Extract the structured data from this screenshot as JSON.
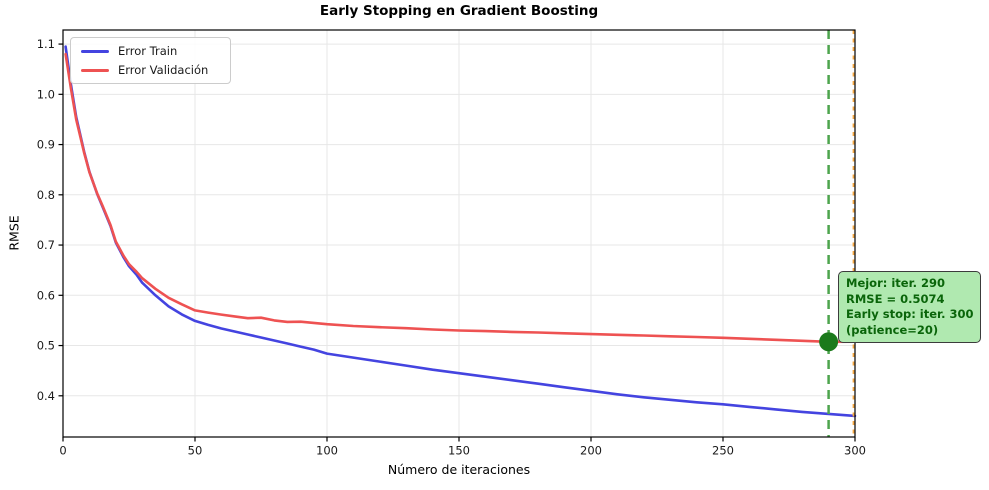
{
  "chart_data": {
    "type": "line",
    "title": "Early Stopping en Gradient Boosting",
    "xlabel": "Número de iteraciones",
    "ylabel": "RMSE",
    "xlim": [
      0,
      300
    ],
    "ylim": [
      0.318,
      1.128
    ],
    "x_ticks": [
      0,
      50,
      100,
      150,
      200,
      250,
      300
    ],
    "x_tick_labels": [
      "0",
      "50",
      "100",
      "150",
      "200",
      "250",
      "300"
    ],
    "y_ticks": [
      0.4,
      0.5,
      0.6,
      0.7,
      0.8,
      0.9,
      1.0,
      1.1
    ],
    "y_tick_labels": [
      "0.4",
      "0.5",
      "0.6",
      "0.7",
      "0.8",
      "0.9",
      "1.0",
      "1.1"
    ],
    "grid": true,
    "grid_color": "#e7e7e7",
    "legend_position": "upper-left",
    "x": [
      1,
      3,
      5,
      8,
      10,
      13,
      15,
      18,
      20,
      23,
      25,
      28,
      30,
      35,
      40,
      45,
      50,
      55,
      60,
      65,
      70,
      75,
      80,
      85,
      90,
      95,
      100,
      110,
      120,
      130,
      140,
      150,
      160,
      170,
      180,
      190,
      200,
      210,
      220,
      230,
      240,
      250,
      260,
      270,
      280,
      290,
      300
    ],
    "series": [
      {
        "name": "Error Train",
        "color": "#4444e0",
        "y": [
          1.095,
          1.02,
          0.955,
          0.886,
          0.846,
          0.801,
          0.776,
          0.738,
          0.705,
          0.675,
          0.658,
          0.64,
          0.625,
          0.6,
          0.578,
          0.562,
          0.549,
          0.541,
          0.534,
          0.528,
          0.522,
          0.516,
          0.51,
          0.504,
          0.498,
          0.492,
          0.484,
          0.476,
          0.468,
          0.46,
          0.452,
          0.445,
          0.438,
          0.431,
          0.424,
          0.417,
          0.41,
          0.403,
          0.397,
          0.392,
          0.387,
          0.383,
          0.378,
          0.373,
          0.368,
          0.364,
          0.36
        ]
      },
      {
        "name": "Error Validación",
        "color": "#ee5252",
        "y": [
          1.08,
          1.012,
          0.95,
          0.884,
          0.845,
          0.802,
          0.778,
          0.74,
          0.707,
          0.678,
          0.662,
          0.646,
          0.634,
          0.613,
          0.595,
          0.582,
          0.57,
          0.5655,
          0.5615,
          0.558,
          0.5545,
          0.5555,
          0.55,
          0.547,
          0.5475,
          0.545,
          0.5425,
          0.539,
          0.5365,
          0.5345,
          0.532,
          0.53,
          0.5288,
          0.5272,
          0.526,
          0.5243,
          0.5228,
          0.5213,
          0.52,
          0.5185,
          0.517,
          0.5155,
          0.5135,
          0.5115,
          0.5095,
          0.5074,
          0.5076
        ]
      }
    ],
    "vlines": [
      {
        "name": "best-iteration-line",
        "x": 290,
        "color": "#4da44d",
        "dash": "9 6",
        "width": 2.5
      },
      {
        "name": "early-stop-line",
        "x": 300,
        "color": "#f5a742",
        "dash": "4 4.5",
        "width": 1.8
      }
    ],
    "best_point": {
      "x": 290,
      "y": 0.5074,
      "color": "#1b7a1b",
      "radius": 9.5
    },
    "annotation": {
      "lines": [
        "Mejor: iter. 290",
        "RMSE = 0.5074",
        "Early stop: iter. 300",
        "(patience=20)"
      ],
      "bg_color": "#b0e9b0",
      "text_color": "#0a650a",
      "border_color": "#3c3c3c"
    }
  }
}
